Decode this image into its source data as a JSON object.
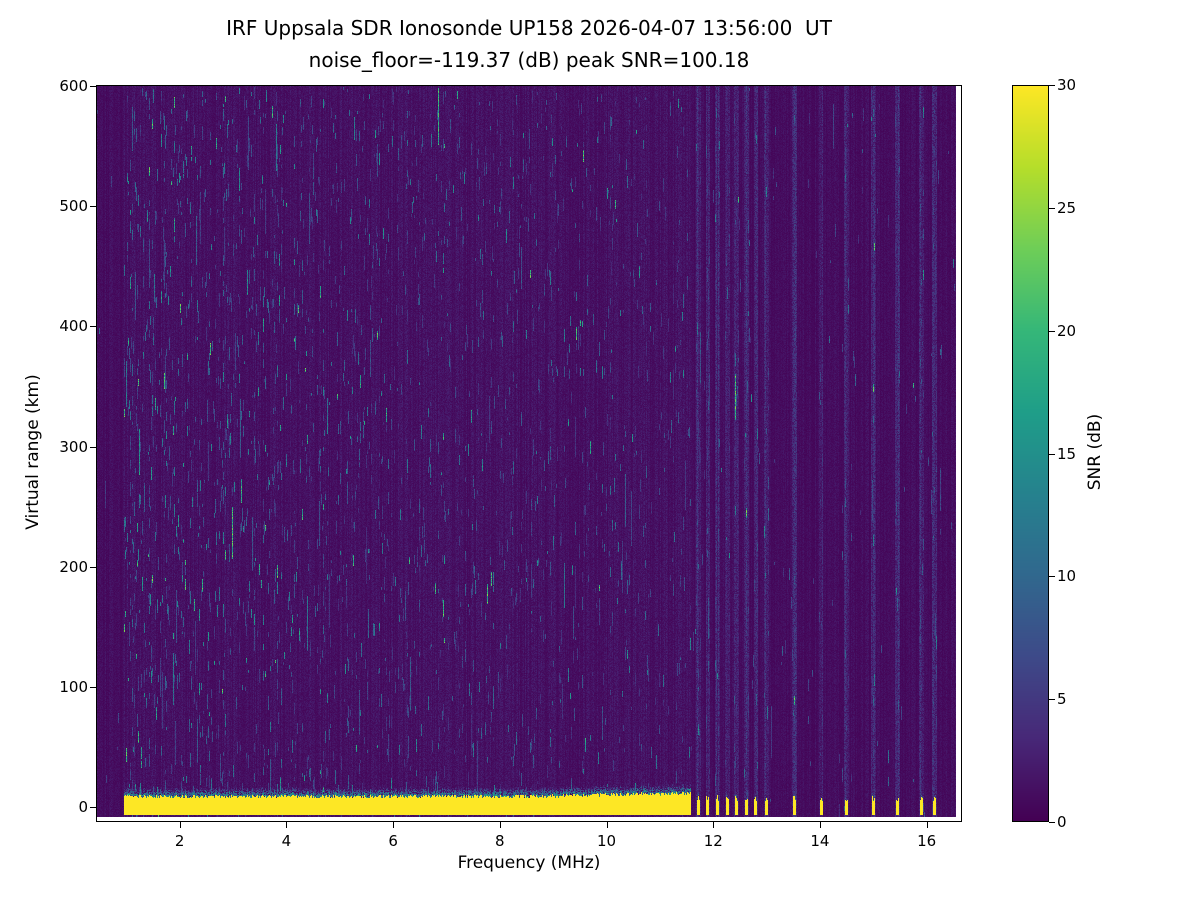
{
  "chart_data": {
    "type": "heatmap",
    "title": "IRF Uppsala SDR Ionosonde UP158 2026-04-07 13:56:00  UT",
    "subtitle": "noise_floor=-119.37 (dB) peak SNR=100.18",
    "xlabel": "Frequency (MHz)",
    "ylabel": "Virtual range (km)",
    "x_unit": "MHz",
    "y_unit": "km",
    "xlim": [
      0.45,
      16.55
    ],
    "ylim": [
      -8,
      600
    ],
    "x_ticks": [
      2,
      4,
      6,
      8,
      10,
      12,
      14,
      16
    ],
    "y_ticks": [
      0,
      100,
      200,
      300,
      400,
      500,
      600
    ],
    "colorbar": {
      "label": "SNR (dB)",
      "min": 0,
      "max": 30,
      "ticks": [
        0,
        5,
        10,
        15,
        20,
        25,
        30
      ],
      "colormap": "viridis"
    },
    "noise_floor_db": -119.37,
    "peak_snr_db": 100.18,
    "sweep": {
      "start_mhz": 0.95,
      "end_mhz": 11.58
    },
    "ground_echo_band": {
      "x_mhz": [
        0.95,
        11.58
      ],
      "y_km": [
        -5.5,
        10
      ],
      "snr_db": 30,
      "fringe_top_km": 20
    },
    "rfi_marks_mhz": [
      11.72,
      11.9,
      12.08,
      12.26,
      12.44,
      12.62,
      12.8,
      13.0,
      13.52,
      14.02,
      14.5,
      15.0,
      15.45,
      15.9,
      16.15
    ],
    "background_snr_db": 1.5,
    "speckle": {
      "description": "sparse teal vertical dashes of 4-21 dB scattered over all ranges, density decreasing with frequency; faint full-height RFI columns above 11.6 MHz",
      "max_db": 21
    },
    "viridis_stops": [
      "#440154",
      "#482878",
      "#3e4a89",
      "#31688e",
      "#26828e",
      "#1f9e89",
      "#35b779",
      "#6ece58",
      "#b5de2b",
      "#fde725"
    ]
  }
}
